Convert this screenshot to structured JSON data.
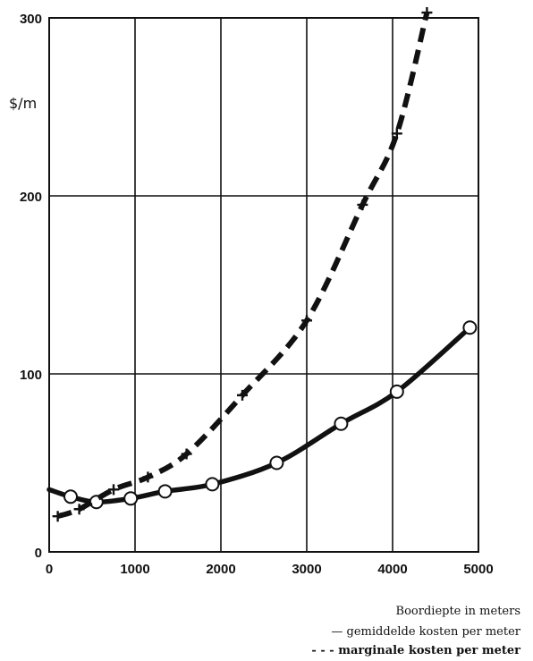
{
  "chart_data": {
    "type": "line",
    "title": "",
    "xlabel": "Boordiepte in meters",
    "ylabel": "$/m",
    "xlim": [
      0,
      5000
    ],
    "ylim": [
      0,
      300
    ],
    "x_ticks": [
      "0",
      "1000",
      "2000",
      "3000",
      "4000",
      "5000"
    ],
    "y_ticks": [
      "0",
      "100",
      "200",
      "300"
    ],
    "grid": true,
    "legend_position": "bottom-right",
    "series": [
      {
        "name": "gemiddelde kosten per meter",
        "style": "solid",
        "marker": "circle",
        "x": [
          0,
          250,
          550,
          950,
          1350,
          1900,
          2650,
          3400,
          4050,
          4900
        ],
        "y": [
          35,
          31,
          28,
          30,
          34,
          38,
          50,
          72,
          90,
          126
        ]
      },
      {
        "name": "marginale kosten per meter",
        "style": "dashed",
        "marker": "plus",
        "x": [
          100,
          350,
          750,
          1150,
          1600,
          2250,
          3000,
          3650,
          4050,
          4400
        ],
        "y": [
          20,
          24,
          35,
          42,
          55,
          88,
          130,
          195,
          235,
          303
        ]
      }
    ]
  },
  "legend": {
    "xlabel": "Boordiepte in meters",
    "mean_line_symbol": "—",
    "mean_label": "gemiddelde kosten per meter",
    "marginal_line_symbol": "- - -",
    "marginal_label": "marginale kosten per meter"
  },
  "colors": {
    "ink": "#111111",
    "background": "#ffffff"
  }
}
